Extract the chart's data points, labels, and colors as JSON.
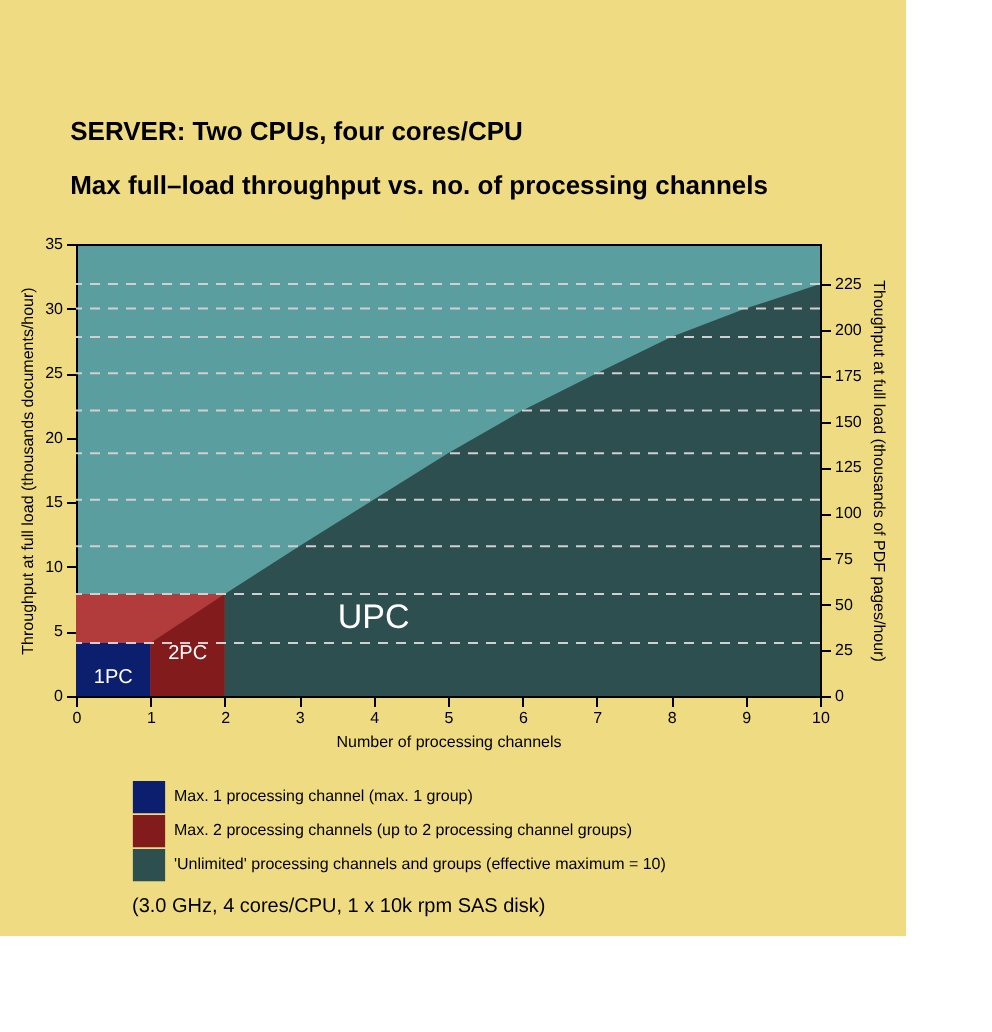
{
  "chart_data": {
    "type": "area",
    "title": "SERVER: Two CPUs, four cores/CPU",
    "subtitle": "Max full–load throughput vs. no. of processing channels",
    "xlabel": "Number of processing channels",
    "ylabel": "Throughput at full load (thousands documents/hour)",
    "y2label": "Thoughput at full load (thousands of PDF pages/hour)",
    "xlim": [
      0,
      10
    ],
    "xticks": [
      0,
      1,
      2,
      3,
      4,
      5,
      6,
      7,
      8,
      9,
      10
    ],
    "ylim": [
      0,
      35
    ],
    "yticks": [
      0,
      5,
      10,
      15,
      20,
      25,
      30,
      35
    ],
    "y2lim": [
      0,
      247
    ],
    "y2ticks": [
      0,
      25,
      50,
      75,
      100,
      125,
      150,
      175,
      200,
      225
    ],
    "grid": false,
    "legend": "bottom left",
    "series": [
      {
        "color": "#b23c3c",
        "x": [
          0,
          2
        ],
        "values": [
          7.9,
          7.9
        ]
      },
      {
        "name": "Max. 1 processing channel (max. 1 group)",
        "color": "#0c1f6e",
        "x": [
          0,
          1
        ],
        "values": [
          4.1,
          4.1
        ]
      },
      {
        "name": "Max. 2 processing channels (up to 2 processing channel groups)",
        "color": "#821c1c",
        "x": [
          1,
          2
        ],
        "values": [
          4.1,
          7.9
        ]
      },
      {
        "name": "'Unlimited' processing channels and groups (effective maximum = 10)",
        "color": "#2e4f50",
        "x": [
          2,
          3,
          4,
          5,
          6,
          7,
          8,
          9,
          10
        ],
        "values": [
          7.9,
          11.6,
          15.2,
          18.8,
          22.1,
          25.0,
          27.8,
          30.0,
          31.9
        ]
      }
    ],
    "ref_lines": [
      {
        "axis": "y",
        "value": 4.1,
        "color": "#d0d0d0",
        "line_style": "dashed"
      },
      {
        "axis": "y",
        "value": 7.9,
        "color": "#d0d0d0",
        "line_style": "dashed"
      },
      {
        "axis": "y",
        "value": 11.6,
        "color": "#d0d0d0",
        "line_style": "dashed"
      },
      {
        "axis": "y",
        "value": 15.2,
        "color": "#d0d0d0",
        "line_style": "dashed"
      },
      {
        "axis": "y",
        "value": 18.8,
        "color": "#d0d0d0",
        "line_style": "dashed"
      },
      {
        "axis": "y",
        "value": 22.1,
        "color": "#d0d0d0",
        "line_style": "dashed"
      },
      {
        "axis": "y",
        "value": 25.0,
        "color": "#d0d0d0",
        "line_style": "dashed"
      },
      {
        "axis": "y",
        "value": 27.8,
        "color": "#d0d0d0",
        "line_style": "dashed"
      },
      {
        "axis": "y",
        "value": 30.0,
        "color": "#d0d0d0",
        "line_style": "dashed"
      },
      {
        "axis": "y",
        "value": 31.9,
        "color": "#d0d0d0",
        "line_style": "dashed"
      }
    ],
    "annotations": [
      {
        "text": "1PC",
        "x": 0.5,
        "y": 4.1
      },
      {
        "text": "2PC",
        "x": 1.5,
        "y": 6.0
      },
      {
        "text": "UPC",
        "x": 4,
        "y": 7.9
      },
      "(3.0 GHz, 4 cores/CPU, 1 x 10k rpm SAS disk)"
    ]
  }
}
